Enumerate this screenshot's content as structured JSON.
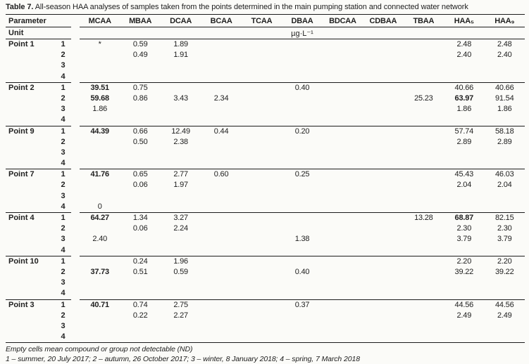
{
  "title": {
    "label": "Table 7.",
    "text": " All-season HAA analyses of samples taken from the points determined in the main pumping station and connected water network"
  },
  "table": {
    "param_header": "Parameter",
    "unit_label": "Unit",
    "unit_value": "µg·L⁻¹",
    "columns": [
      "MCAA",
      "MBAA",
      "DCAA",
      "BCAA",
      "TCAA",
      "DBAA",
      "BDCAA",
      "CDBAA",
      "TBAA",
      "HAA₅",
      "HAA₉"
    ],
    "groups": [
      {
        "point": "Point 1",
        "rows": [
          {
            "season": "1",
            "cells": [
              "*",
              "0.59",
              "1.89",
              "",
              "",
              "",
              "",
              "",
              "",
              "2.48",
              "2.48"
            ],
            "bold": []
          },
          {
            "season": "2",
            "cells": [
              "",
              "0.49",
              "1.91",
              "",
              "",
              "",
              "",
              "",
              "",
              "2.40",
              "2.40"
            ],
            "bold": []
          },
          {
            "season": "3",
            "cells": [
              "",
              "",
              "",
              "",
              "",
              "",
              "",
              "",
              "",
              "",
              ""
            ],
            "bold": []
          },
          {
            "season": "4",
            "cells": [
              "",
              "",
              "",
              "",
              "",
              "",
              "",
              "",
              "",
              "",
              ""
            ],
            "bold": []
          }
        ]
      },
      {
        "point": "Point 2",
        "rows": [
          {
            "season": "1",
            "cells": [
              "39.51",
              "0.75",
              "",
              "",
              "",
              "0.40",
              "",
              "",
              "",
              "40.66",
              "40.66"
            ],
            "bold": [
              0
            ]
          },
          {
            "season": "2",
            "cells": [
              "59.68",
              "0.86",
              "3.43",
              "2.34",
              "",
              "",
              "",
              "",
              "25.23",
              "63.97",
              "91.54"
            ],
            "bold": [
              0,
              9
            ]
          },
          {
            "season": "3",
            "cells": [
              "1.86",
              "",
              "",
              "",
              "",
              "",
              "",
              "",
              "",
              "1.86",
              "1.86"
            ],
            "bold": []
          },
          {
            "season": "4",
            "cells": [
              "",
              "",
              "",
              "",
              "",
              "",
              "",
              "",
              "",
              "",
              ""
            ],
            "bold": []
          }
        ]
      },
      {
        "point": "Point 9",
        "rows": [
          {
            "season": "1",
            "cells": [
              "44.39",
              "0.66",
              "12.49",
              "0.44",
              "",
              "0.20",
              "",
              "",
              "",
              "57.74",
              "58.18"
            ],
            "bold": [
              0
            ]
          },
          {
            "season": "2",
            "cells": [
              "",
              "0.50",
              "2.38",
              "",
              "",
              "",
              "",
              "",
              "",
              "2.89",
              "2.89"
            ],
            "bold": []
          },
          {
            "season": "3",
            "cells": [
              "",
              "",
              "",
              "",
              "",
              "",
              "",
              "",
              "",
              "",
              ""
            ],
            "bold": []
          },
          {
            "season": "4",
            "cells": [
              "",
              "",
              "",
              "",
              "",
              "",
              "",
              "",
              "",
              "",
              ""
            ],
            "bold": []
          }
        ]
      },
      {
        "point": "Point 7",
        "rows": [
          {
            "season": "1",
            "cells": [
              "41.76",
              "0.65",
              "2.77",
              "0.60",
              "",
              "0.25",
              "",
              "",
              "",
              "45.43",
              "46.03"
            ],
            "bold": [
              0
            ]
          },
          {
            "season": "2",
            "cells": [
              "",
              "0.06",
              "1.97",
              "",
              "",
              "",
              "",
              "",
              "",
              "2.04",
              "2.04"
            ],
            "bold": []
          },
          {
            "season": "3",
            "cells": [
              "",
              "",
              "",
              "",
              "",
              "",
              "",
              "",
              "",
              "",
              ""
            ],
            "bold": []
          },
          {
            "season": "4",
            "cells": [
              "0",
              "",
              "",
              "",
              "",
              "",
              "",
              "",
              "",
              "",
              ""
            ],
            "bold": []
          }
        ]
      },
      {
        "point": "Point 4",
        "rows": [
          {
            "season": "1",
            "cells": [
              "64.27",
              "1.34",
              "3.27",
              "",
              "",
              "",
              "",
              "",
              "13.28",
              "68.87",
              "82.15"
            ],
            "bold": [
              0,
              9
            ]
          },
          {
            "season": "2",
            "cells": [
              "",
              "0.06",
              "2.24",
              "",
              "",
              "",
              "",
              "",
              "",
              "2.30",
              "2.30"
            ],
            "bold": []
          },
          {
            "season": "3",
            "cells": [
              "2.40",
              "",
              "",
              "",
              "",
              "1.38",
              "",
              "",
              "",
              "3.79",
              "3.79"
            ],
            "bold": []
          },
          {
            "season": "4",
            "cells": [
              "",
              "",
              "",
              "",
              "",
              "",
              "",
              "",
              "",
              "",
              ""
            ],
            "bold": []
          }
        ]
      },
      {
        "point": "Point 10",
        "rows": [
          {
            "season": "1",
            "cells": [
              "",
              "0.24",
              "1.96",
              "",
              "",
              "",
              "",
              "",
              "",
              "2.20",
              "2.20"
            ],
            "bold": []
          },
          {
            "season": "2",
            "cells": [
              "37.73",
              "0.51",
              "0.59",
              "",
              "",
              "0.40",
              "",
              "",
              "",
              "39.22",
              "39.22"
            ],
            "bold": [
              0
            ]
          },
          {
            "season": "3",
            "cells": [
              "",
              "",
              "",
              "",
              "",
              "",
              "",
              "",
              "",
              "",
              ""
            ],
            "bold": []
          },
          {
            "season": "4",
            "cells": [
              "",
              "",
              "",
              "",
              "",
              "",
              "",
              "",
              "",
              "",
              ""
            ],
            "bold": []
          }
        ]
      },
      {
        "point": "Point 3",
        "rows": [
          {
            "season": "1",
            "cells": [
              "40.71",
              "0.74",
              "2.75",
              "",
              "",
              "0.37",
              "",
              "",
              "",
              "44.56",
              "44.56"
            ],
            "bold": [
              0
            ]
          },
          {
            "season": "2",
            "cells": [
              "",
              "0.22",
              "2.27",
              "",
              "",
              "",
              "",
              "",
              "",
              "2.49",
              "2.49"
            ],
            "bold": []
          },
          {
            "season": "3",
            "cells": [
              "",
              "",
              "",
              "",
              "",
              "",
              "",
              "",
              "",
              "",
              ""
            ],
            "bold": []
          },
          {
            "season": "4",
            "cells": [
              "",
              "",
              "",
              "",
              "",
              "",
              "",
              "",
              "",
              "",
              ""
            ],
            "bold": []
          }
        ]
      }
    ]
  },
  "footnotes": {
    "note1": "Empty cells mean compound or group not detectable (ND)",
    "note2": "1 – summer, 20 July 2017; 2 – autumn, 26 October 2017; 3 – winter, 8 January 2018; 4 – spring, 7 March 2018"
  }
}
